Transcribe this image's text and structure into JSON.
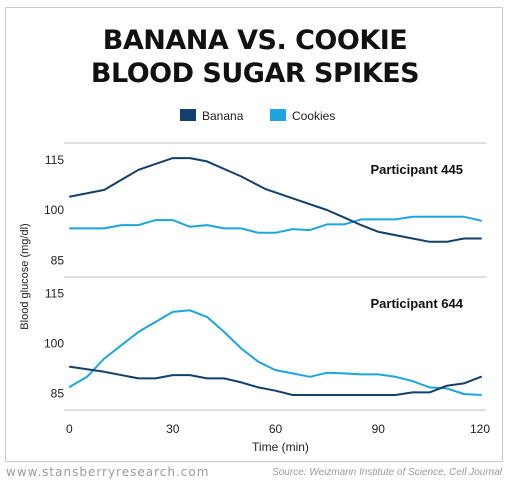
{
  "header": {
    "title_line1": "BANANA VS. COOKIE",
    "title_line2": "BLOOD SUGAR SPIKES"
  },
  "footer": {
    "site": "www.stansberryresearch.com",
    "source": "Source: Weizmann Institute of Science, Cell Journal"
  },
  "colors": {
    "banana": "#123f6b",
    "cookies": "#1ca5e0",
    "divider": "#bfbfbf",
    "axis_text": "#222222"
  },
  "chart_data": {
    "type": "line",
    "xlabel": "Time (min)",
    "ylabel": "Blood glucose (mg/dl)",
    "xlim": [
      0,
      120
    ],
    "xticks": [
      0,
      30,
      60,
      90,
      120
    ],
    "grid": false,
    "legend": {
      "placement": "top-center",
      "entries": [
        "Banana",
        "Cookies"
      ]
    },
    "panels": [
      {
        "label": "Participant 445",
        "ylim": [
          80,
          120
        ],
        "yticks": [
          85,
          100,
          115
        ],
        "series": [
          {
            "name": "Banana",
            "x": [
              0,
              10,
              20,
              30,
              35,
              40,
              50,
              57,
              65,
              75,
              80,
              85,
              90,
              100,
              105,
              110,
              115,
              120
            ],
            "y": [
              104,
              106,
              112,
              115.5,
              115.5,
              114.5,
              110,
              106.3,
              103.5,
              100,
              97.8,
              95.5,
              93.5,
              91.5,
              90.5,
              90.5,
              91.5,
              91.5
            ]
          },
          {
            "name": "Cookies",
            "x": [
              0,
              5,
              10,
              15,
              20,
              25,
              30,
              35,
              40,
              45,
              50,
              55,
              60,
              65,
              70,
              75,
              80,
              85,
              90,
              95,
              100,
              105,
              110,
              115,
              120
            ],
            "y": [
              94.5,
              94.5,
              94.5,
              95.5,
              95.5,
              97,
              97,
              95,
              95.5,
              94.5,
              94.5,
              93.2,
              93.2,
              94.3,
              94,
              95.7,
              95.7,
              97.2,
              97.2,
              97.2,
              98,
              98,
              98,
              98,
              96.8
            ]
          }
        ]
      },
      {
        "label": "Participant 644",
        "ylim": [
          80,
          120
        ],
        "yticks": [
          85,
          100,
          115
        ],
        "series": [
          {
            "name": "Banana",
            "x": [
              0,
              10,
              20,
              25,
              30,
              35,
              40,
              45,
              50,
              55,
              60,
              65,
              70,
              80,
              90,
              95,
              100,
              105,
              110,
              115,
              120
            ],
            "y": [
              93,
              91.5,
              89.5,
              89.5,
              90.5,
              90.5,
              89.5,
              89.5,
              88.3,
              86.8,
              85.8,
              84.5,
              84.5,
              84.5,
              84.5,
              84.5,
              85.3,
              85.3,
              87.3,
              88,
              90
            ]
          },
          {
            "name": "Cookies",
            "x": [
              0,
              5,
              10,
              15,
              20,
              25,
              30,
              35,
              40,
              45,
              50,
              55,
              60,
              65,
              70,
              75,
              80,
              85,
              90,
              95,
              100,
              105,
              110,
              115,
              120
            ],
            "y": [
              87,
              90,
              95.5,
              99.5,
              103.5,
              106.5,
              109.5,
              110,
              108,
              103.5,
              98.5,
              94.5,
              92,
              91,
              90,
              91.2,
              91,
              90.7,
              90.7,
              90,
              88.7,
              86.8,
              86.5,
              84.8,
              84.5
            ]
          }
        ]
      }
    ]
  }
}
